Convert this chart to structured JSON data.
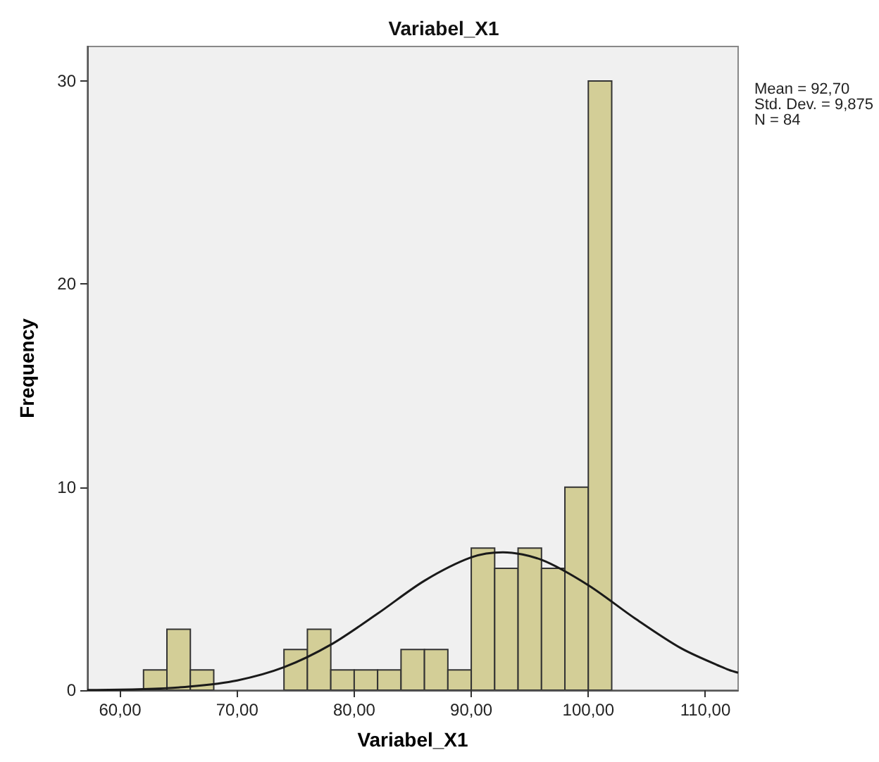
{
  "chart_data": {
    "type": "histogram",
    "title": "Variabel_X1",
    "xlabel": "Variabel_X1",
    "ylabel": "Frequency",
    "annotations": [
      "Mean = 92,70\nStd. Dev. = 9,875\nN = 84"
    ],
    "xlim": [
      57.2,
      112.8
    ],
    "ylim": [
      0,
      31.7
    ],
    "xticks": [
      {
        "value": 60,
        "label": "60,00"
      },
      {
        "value": 70,
        "label": "70,00"
      },
      {
        "value": 80,
        "label": "80,00"
      },
      {
        "value": 90,
        "label": "90,00"
      },
      {
        "value": 100,
        "label": "100,00"
      },
      {
        "value": 110,
        "label": "110,00"
      }
    ],
    "yticks": [
      0,
      10,
      20,
      30
    ],
    "grid": false,
    "series": [
      {
        "color": "#d3ce97",
        "bins": [
          62,
          64,
          66,
          68,
          70,
          72,
          74,
          76,
          78,
          80,
          82,
          84,
          86,
          88,
          90,
          92,
          94,
          96,
          98,
          100,
          102
        ],
        "values": [
          1,
          3,
          1,
          0,
          0,
          0,
          2,
          3,
          1,
          1,
          1,
          2,
          2,
          1,
          7,
          6,
          7,
          6,
          10,
          30
        ]
      },
      {
        "type": "line",
        "color": "#1a1a1a",
        "marker": "none",
        "x": [
          57.2,
          58,
          62,
          66,
          70,
          74,
          78,
          82,
          86,
          90,
          92.7,
          96,
          100,
          104,
          108,
          112,
          112.8
        ],
        "values": [
          0.01,
          0.01,
          0.05,
          0.18,
          0.48,
          1.13,
          2.24,
          3.77,
          5.39,
          6.54,
          6.79,
          6.42,
          5.17,
          3.53,
          2.04,
          1.0,
          0.86
        ]
      }
    ]
  }
}
